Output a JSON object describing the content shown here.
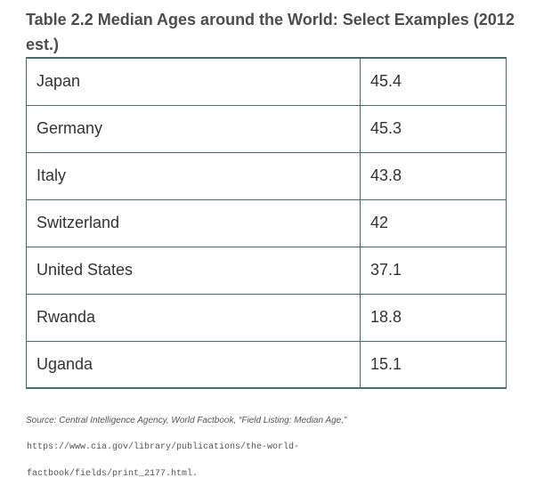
{
  "title": "Table 2.2 Median Ages around the World: Select Examples (2012 est.)",
  "rows": [
    {
      "country": "Japan",
      "median_age": "45.4"
    },
    {
      "country": "Germany",
      "median_age": "45.3"
    },
    {
      "country": "Italy",
      "median_age": "43.8"
    },
    {
      "country": "Switzerland",
      "median_age": "42"
    },
    {
      "country": "United States",
      "median_age": "37.1"
    },
    {
      "country": "Rwanda",
      "median_age": "18.8"
    },
    {
      "country": "Uganda",
      "median_age": "15.1"
    }
  ],
  "source": "Source: Central Intelligence Agency, World Factbook, “Field Listing: Median Age,”",
  "url_line1": "https://www.cia.gov/library/publications/the-world-",
  "url_line2": "factbook/fields/print_2177.html",
  "colors": {
    "border": "#466d6d",
    "title": "#4d4d4d"
  }
}
